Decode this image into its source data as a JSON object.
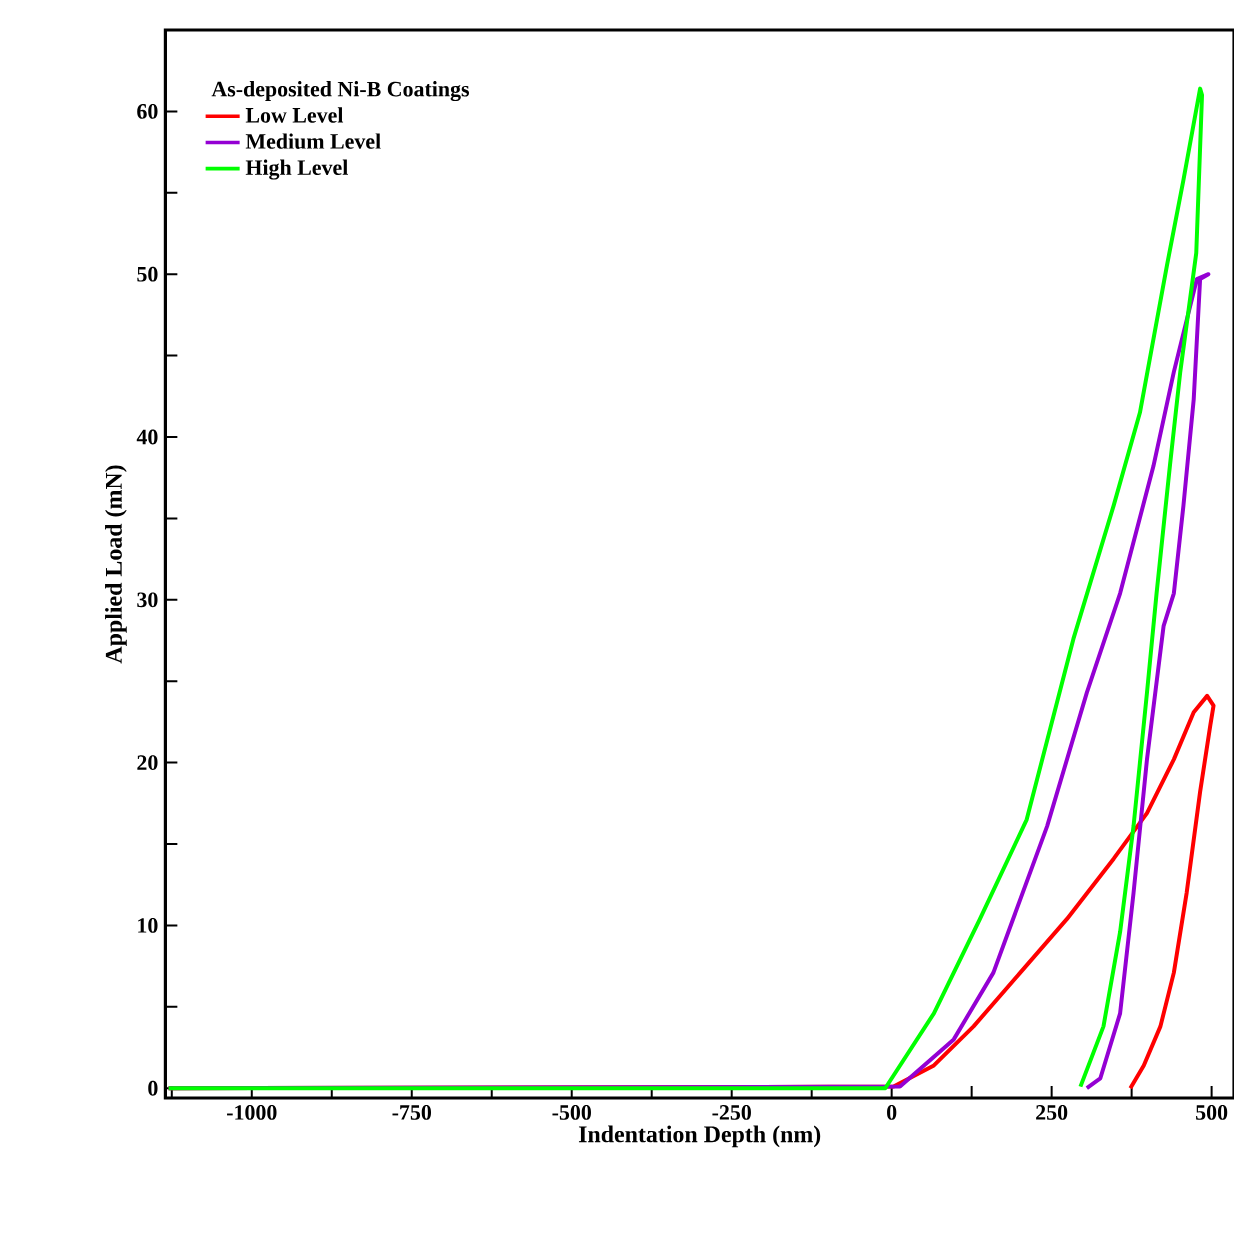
{
  "chart_data": {
    "type": "line",
    "xlabel": "Indentation Depth (nm)",
    "ylabel": "Applied Load (mN)",
    "legend_title": "As-deposited Ni-B Coatings",
    "xlim": [
      -1135,
      535
    ],
    "ylim": [
      -0.6,
      65
    ],
    "xticks": [
      {
        "value": -1125,
        "label": null
      },
      -1000,
      {
        "value": -875,
        "label": null
      },
      -750,
      {
        "value": -625,
        "label": null
      },
      -500,
      {
        "value": -375,
        "label": null
      },
      -250,
      {
        "value": -125,
        "label": null
      },
      0,
      {
        "value": 125,
        "label": null
      },
      250,
      {
        "value": 375,
        "label": null
      },
      500
    ],
    "yticks": [
      0,
      {
        "value": 5,
        "label": null
      },
      10,
      {
        "value": 15,
        "label": null
      },
      20,
      {
        "value": 25,
        "label": null
      },
      30,
      {
        "value": 35,
        "label": null
      },
      40,
      {
        "value": 45,
        "label": null
      },
      50,
      {
        "value": 55,
        "label": null
      },
      60
    ],
    "legend": "top left",
    "line_style": "solid",
    "grid": false,
    "series": [
      {
        "name": "Low Level",
        "color": "#ff0000",
        "x": [
          -1130,
          3,
          66,
          128,
          201,
          274,
          347,
          399,
          441,
          472,
          493,
          503,
          498,
          482,
          461,
          441,
          420,
          394,
          373
        ],
        "values": [
          0,
          0.1,
          1.4,
          3.8,
          7.1,
          10.4,
          14.1,
          16.9,
          20.2,
          23.1,
          24.1,
          23.5,
          22.3,
          18.2,
          12,
          7.1,
          3.8,
          1.4,
          0
        ]
      },
      {
        "name": "Medium Level",
        "color": "#9400d3",
        "x": [
          -1130,
          13,
          97,
          159,
          243,
          305,
          357,
          409,
          441,
          477,
          495,
          482,
          472,
          456,
          441,
          425,
          399,
          378,
          357,
          326,
          305
        ],
        "values": [
          0,
          0.1,
          3.0,
          7.1,
          16.1,
          24.3,
          30.4,
          38.2,
          44,
          49.7,
          50,
          49.7,
          42.3,
          35.8,
          30.4,
          28.4,
          20.2,
          12,
          4.6,
          0.6,
          0
        ]
      },
      {
        "name": "High Level",
        "color": "#00ff00",
        "x": [
          -1130,
          -10,
          66,
          138,
          211,
          284,
          347,
          388,
          430,
          456,
          482,
          485,
          476,
          451,
          435,
          414,
          399,
          378,
          357,
          331,
          295
        ],
        "values": [
          0,
          0,
          4.6,
          10.4,
          16.5,
          27.6,
          35.8,
          41.5,
          50.5,
          55.8,
          61.4,
          61,
          51.3,
          44,
          38.3,
          30.4,
          24.3,
          16.1,
          9.6,
          3.8,
          0.1
        ]
      }
    ]
  }
}
